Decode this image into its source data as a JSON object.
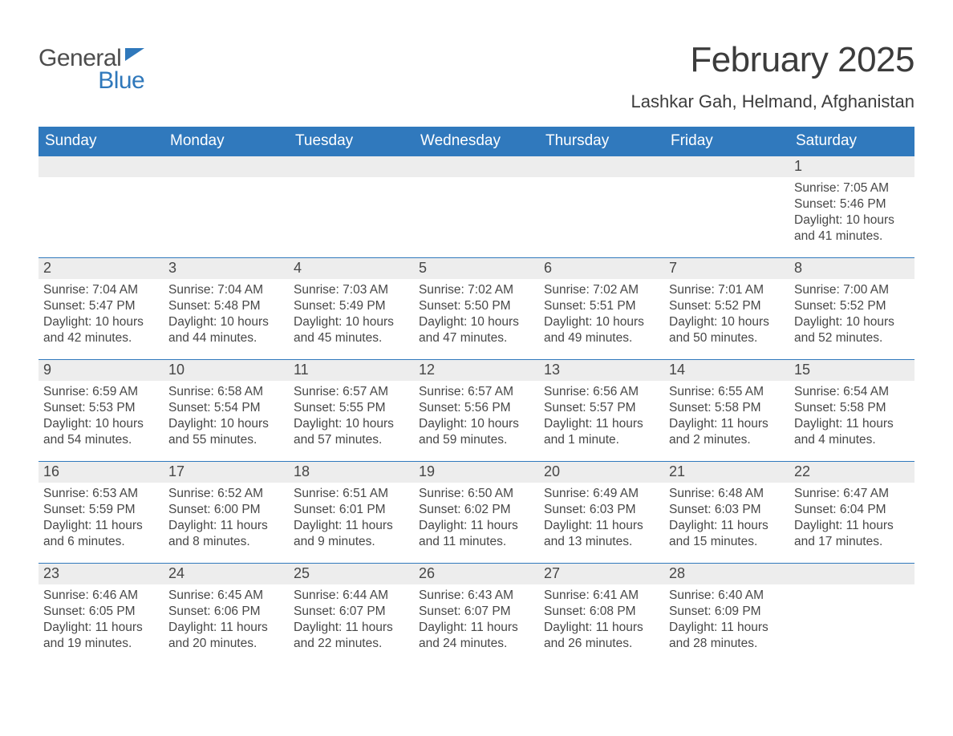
{
  "logo": {
    "general": "General",
    "blue": "Blue"
  },
  "title": "February 2025",
  "location": "Lashkar Gah, Helmand, Afghanistan",
  "colors": {
    "header_bg": "#3079bd",
    "header_text": "#ffffff",
    "daynum_bg": "#ededed",
    "body_text": "#474747",
    "rule": "#3079bd",
    "logo_blue": "#2f78bb",
    "logo_gray": "#4d4d4d",
    "page_bg": "#ffffff"
  },
  "weekdays": [
    "Sunday",
    "Monday",
    "Tuesday",
    "Wednesday",
    "Thursday",
    "Friday",
    "Saturday"
  ],
  "weeks": [
    [
      {
        "n": "",
        "sr": "",
        "ss": "",
        "dl": ""
      },
      {
        "n": "",
        "sr": "",
        "ss": "",
        "dl": ""
      },
      {
        "n": "",
        "sr": "",
        "ss": "",
        "dl": ""
      },
      {
        "n": "",
        "sr": "",
        "ss": "",
        "dl": ""
      },
      {
        "n": "",
        "sr": "",
        "ss": "",
        "dl": ""
      },
      {
        "n": "",
        "sr": "",
        "ss": "",
        "dl": ""
      },
      {
        "n": "1",
        "sr": "Sunrise: 7:05 AM",
        "ss": "Sunset: 5:46 PM",
        "dl": "Daylight: 10 hours and 41 minutes."
      }
    ],
    [
      {
        "n": "2",
        "sr": "Sunrise: 7:04 AM",
        "ss": "Sunset: 5:47 PM",
        "dl": "Daylight: 10 hours and 42 minutes."
      },
      {
        "n": "3",
        "sr": "Sunrise: 7:04 AM",
        "ss": "Sunset: 5:48 PM",
        "dl": "Daylight: 10 hours and 44 minutes."
      },
      {
        "n": "4",
        "sr": "Sunrise: 7:03 AM",
        "ss": "Sunset: 5:49 PM",
        "dl": "Daylight: 10 hours and 45 minutes."
      },
      {
        "n": "5",
        "sr": "Sunrise: 7:02 AM",
        "ss": "Sunset: 5:50 PM",
        "dl": "Daylight: 10 hours and 47 minutes."
      },
      {
        "n": "6",
        "sr": "Sunrise: 7:02 AM",
        "ss": "Sunset: 5:51 PM",
        "dl": "Daylight: 10 hours and 49 minutes."
      },
      {
        "n": "7",
        "sr": "Sunrise: 7:01 AM",
        "ss": "Sunset: 5:52 PM",
        "dl": "Daylight: 10 hours and 50 minutes."
      },
      {
        "n": "8",
        "sr": "Sunrise: 7:00 AM",
        "ss": "Sunset: 5:52 PM",
        "dl": "Daylight: 10 hours and 52 minutes."
      }
    ],
    [
      {
        "n": "9",
        "sr": "Sunrise: 6:59 AM",
        "ss": "Sunset: 5:53 PM",
        "dl": "Daylight: 10 hours and 54 minutes."
      },
      {
        "n": "10",
        "sr": "Sunrise: 6:58 AM",
        "ss": "Sunset: 5:54 PM",
        "dl": "Daylight: 10 hours and 55 minutes."
      },
      {
        "n": "11",
        "sr": "Sunrise: 6:57 AM",
        "ss": "Sunset: 5:55 PM",
        "dl": "Daylight: 10 hours and 57 minutes."
      },
      {
        "n": "12",
        "sr": "Sunrise: 6:57 AM",
        "ss": "Sunset: 5:56 PM",
        "dl": "Daylight: 10 hours and 59 minutes."
      },
      {
        "n": "13",
        "sr": "Sunrise: 6:56 AM",
        "ss": "Sunset: 5:57 PM",
        "dl": "Daylight: 11 hours and 1 minute."
      },
      {
        "n": "14",
        "sr": "Sunrise: 6:55 AM",
        "ss": "Sunset: 5:58 PM",
        "dl": "Daylight: 11 hours and 2 minutes."
      },
      {
        "n": "15",
        "sr": "Sunrise: 6:54 AM",
        "ss": "Sunset: 5:58 PM",
        "dl": "Daylight: 11 hours and 4 minutes."
      }
    ],
    [
      {
        "n": "16",
        "sr": "Sunrise: 6:53 AM",
        "ss": "Sunset: 5:59 PM",
        "dl": "Daylight: 11 hours and 6 minutes."
      },
      {
        "n": "17",
        "sr": "Sunrise: 6:52 AM",
        "ss": "Sunset: 6:00 PM",
        "dl": "Daylight: 11 hours and 8 minutes."
      },
      {
        "n": "18",
        "sr": "Sunrise: 6:51 AM",
        "ss": "Sunset: 6:01 PM",
        "dl": "Daylight: 11 hours and 9 minutes."
      },
      {
        "n": "19",
        "sr": "Sunrise: 6:50 AM",
        "ss": "Sunset: 6:02 PM",
        "dl": "Daylight: 11 hours and 11 minutes."
      },
      {
        "n": "20",
        "sr": "Sunrise: 6:49 AM",
        "ss": "Sunset: 6:03 PM",
        "dl": "Daylight: 11 hours and 13 minutes."
      },
      {
        "n": "21",
        "sr": "Sunrise: 6:48 AM",
        "ss": "Sunset: 6:03 PM",
        "dl": "Daylight: 11 hours and 15 minutes."
      },
      {
        "n": "22",
        "sr": "Sunrise: 6:47 AM",
        "ss": "Sunset: 6:04 PM",
        "dl": "Daylight: 11 hours and 17 minutes."
      }
    ],
    [
      {
        "n": "23",
        "sr": "Sunrise: 6:46 AM",
        "ss": "Sunset: 6:05 PM",
        "dl": "Daylight: 11 hours and 19 minutes."
      },
      {
        "n": "24",
        "sr": "Sunrise: 6:45 AM",
        "ss": "Sunset: 6:06 PM",
        "dl": "Daylight: 11 hours and 20 minutes."
      },
      {
        "n": "25",
        "sr": "Sunrise: 6:44 AM",
        "ss": "Sunset: 6:07 PM",
        "dl": "Daylight: 11 hours and 22 minutes."
      },
      {
        "n": "26",
        "sr": "Sunrise: 6:43 AM",
        "ss": "Sunset: 6:07 PM",
        "dl": "Daylight: 11 hours and 24 minutes."
      },
      {
        "n": "27",
        "sr": "Sunrise: 6:41 AM",
        "ss": "Sunset: 6:08 PM",
        "dl": "Daylight: 11 hours and 26 minutes."
      },
      {
        "n": "28",
        "sr": "Sunrise: 6:40 AM",
        "ss": "Sunset: 6:09 PM",
        "dl": "Daylight: 11 hours and 28 minutes."
      },
      {
        "n": "",
        "sr": "",
        "ss": "",
        "dl": ""
      }
    ]
  ]
}
